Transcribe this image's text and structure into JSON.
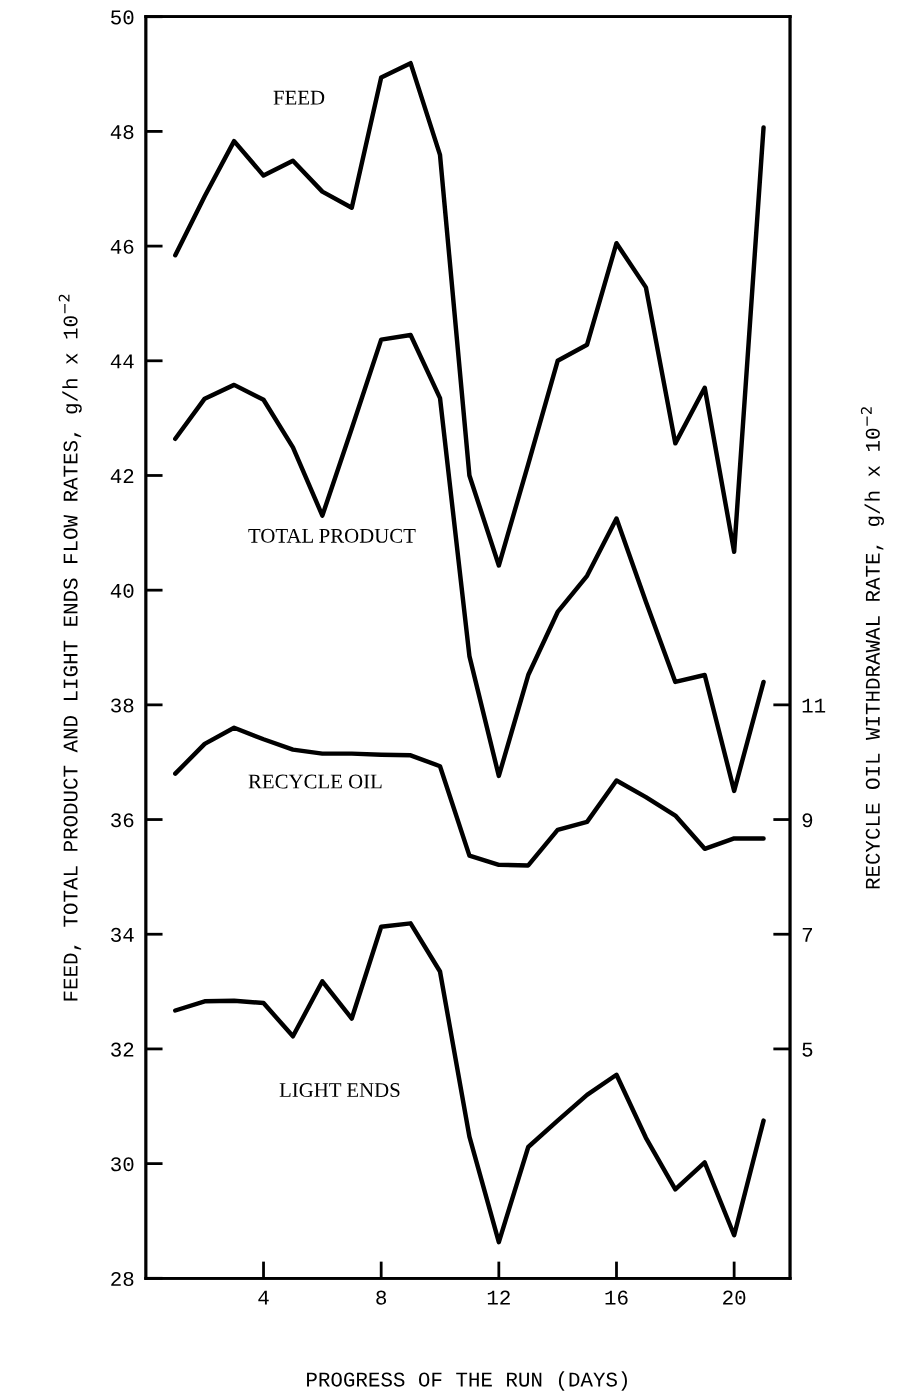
{
  "chart_data": {
    "type": "line",
    "xlabel": "PROGRESS OF THE RUN (DAYS)",
    "ylabel": "FEED, TOTAL PRODUCT AND LIGHT ENDS FLOW RATES, g/h x 10$^{−2}$",
    "y2label": "RECYCLE OIL WITHDRAWAL RATE, g/h x 10$^{−2}$",
    "x": [
      1,
      2,
      3,
      4,
      5,
      6,
      7,
      8,
      9,
      10,
      11,
      12,
      13,
      14,
      15,
      16,
      17,
      18,
      19,
      20,
      21
    ],
    "xlim": [
      0,
      21.9
    ],
    "xticks": [
      4,
      8,
      12,
      16,
      20
    ],
    "ylim": [
      28,
      50
    ],
    "yticks": [
      28,
      30,
      32,
      34,
      36,
      38,
      40,
      42,
      44,
      46,
      48,
      50
    ],
    "y2lim": [
      1,
      23
    ],
    "y2ticks": [
      5,
      7,
      9,
      11
    ],
    "grid": false,
    "legend": false,
    "marker": "none",
    "line_style": "solid",
    "series": [
      {
        "name": "FEED",
        "color": "#000000",
        "values": [
          45.84,
          46.87,
          47.83,
          47.23,
          47.49,
          46.95,
          46.67,
          48.94,
          49.19,
          47.59,
          42.0,
          40.43,
          42.2,
          44.0,
          44.28,
          46.05,
          45.28,
          42.56,
          43.53,
          40.67,
          48.07
        ]
      },
      {
        "name": "TOTAL PRODUCT",
        "color": "#000000",
        "values": [
          42.64,
          43.34,
          43.58,
          43.32,
          42.49,
          41.3,
          42.82,
          44.37,
          44.45,
          43.35,
          38.85,
          36.76,
          38.52,
          39.62,
          40.25,
          41.25,
          39.8,
          38.4,
          38.52,
          36.5,
          38.4
        ]
      },
      {
        "name": "RECYCLE OIL",
        "color": "#000000",
        "axis": "y2",
        "values": [
          9.8,
          10.32,
          10.6,
          10.4,
          10.22,
          10.15,
          10.15,
          10.13,
          10.12,
          9.93,
          8.37,
          8.21,
          8.2,
          8.82,
          8.96,
          9.68,
          9.39,
          9.07,
          8.49,
          8.67,
          8.67
        ]
      },
      {
        "name": "LIGHT ENDS",
        "color": "#000000",
        "values": [
          32.67,
          32.83,
          32.84,
          32.8,
          32.22,
          33.18,
          32.53,
          34.13,
          34.19,
          33.35,
          30.47,
          28.63,
          30.29,
          30.75,
          31.2,
          31.55,
          30.45,
          29.55,
          30.02,
          28.75,
          30.75
        ]
      }
    ]
  }
}
